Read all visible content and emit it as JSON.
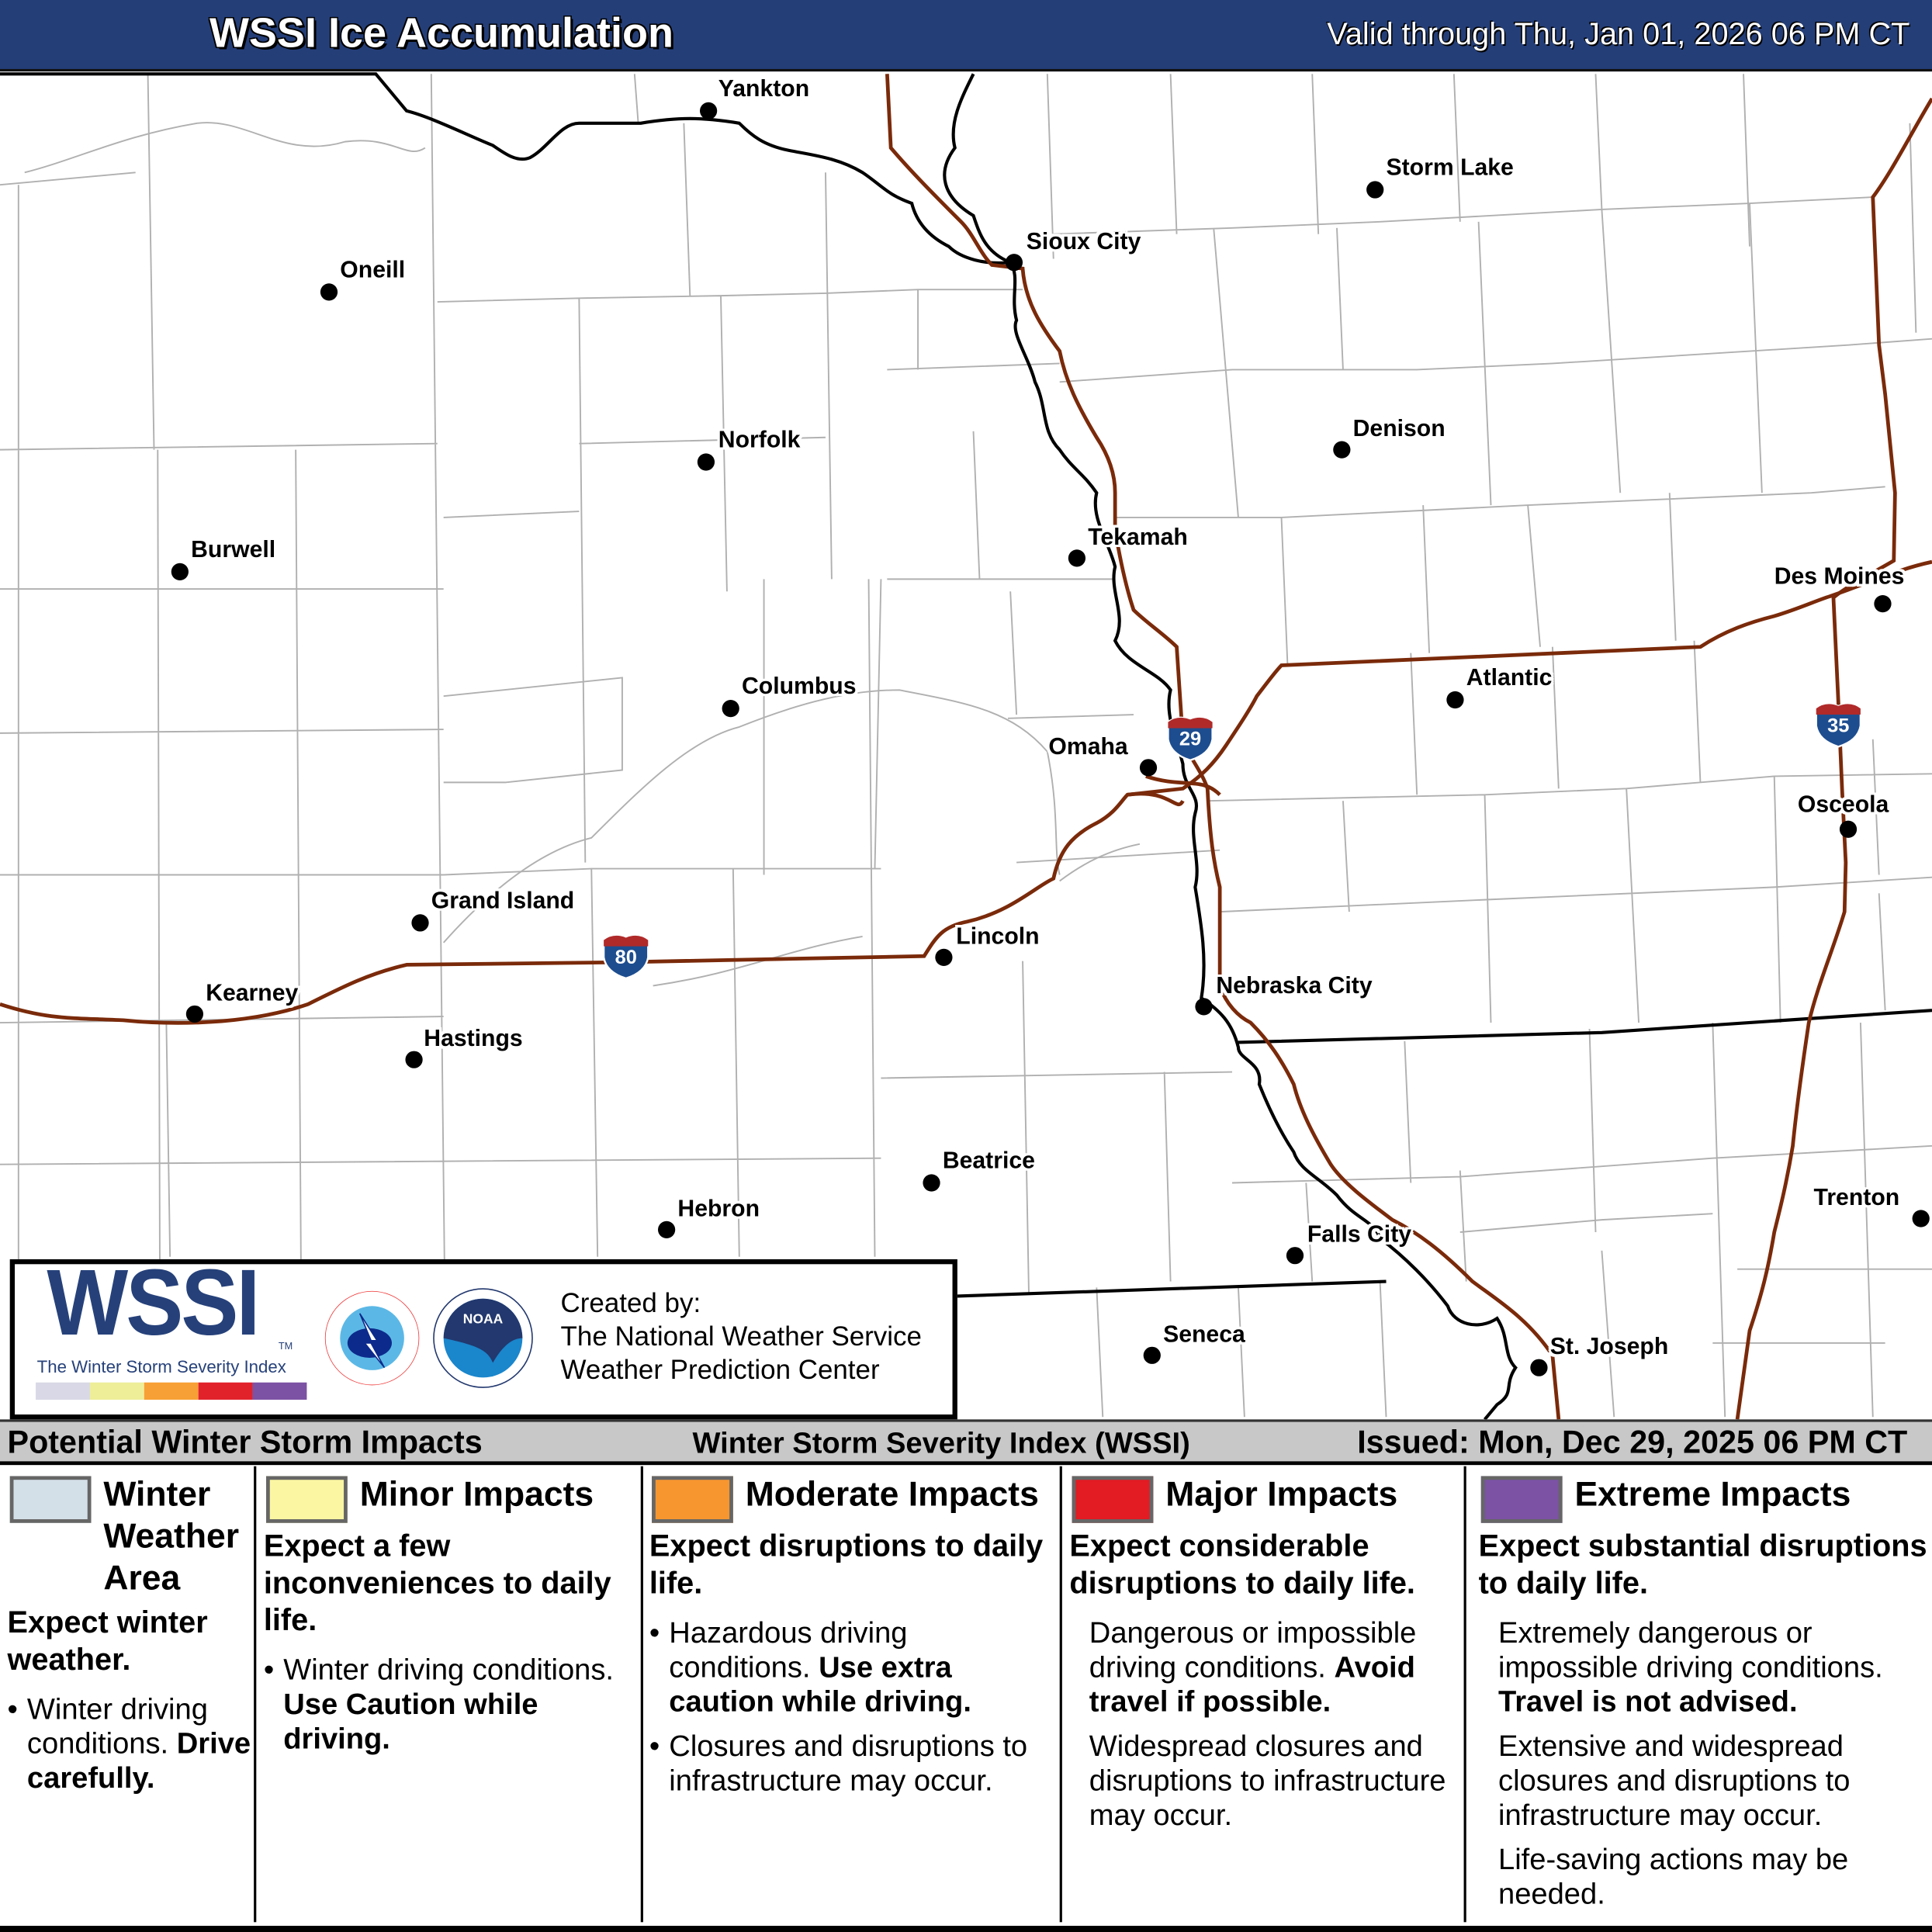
{
  "header": {
    "title": "WSSI Ice Accumulation",
    "valid": "Valid through Thu, Jan 01, 2026 06 PM CT"
  },
  "map": {
    "colors": {
      "interstate": "#7a2a0a",
      "state_border": "#000000",
      "county_border": "#b0b0b0",
      "shield_blue": "#1d4d8f",
      "shield_red": "#b02a2a"
    },
    "cities": [
      "Yankton",
      "Storm Lake",
      "Sioux City",
      "Oneill",
      "Norfolk",
      "Denison",
      "Tekamah",
      "Burwell",
      "Des Moines",
      "Columbus",
      "Atlantic",
      "Omaha",
      "Osceola",
      "Grand Island",
      "Lincoln",
      "Kearney",
      "Nebraska City",
      "Hastings",
      "Beatrice",
      "Trenton",
      "Hebron",
      "Falls City",
      "Seneca",
      "St. Joseph"
    ],
    "interstates": [
      "29",
      "35",
      "80"
    ]
  },
  "logo": {
    "wssi": "WSSI",
    "tm": "TM",
    "subtitle": "The Winter Storm Severity Index",
    "nws_text": "NATIONAL WEATHER SERVICE",
    "noaa_text": "NOAA",
    "created_by": "Created by:",
    "org1": "The National Weather Service",
    "org2": "Weather Prediction Center",
    "bar_colors": [
      "#d8d8e6",
      "#eeee99",
      "#f7a035",
      "#e2222b",
      "#7b52a4"
    ]
  },
  "legend": {
    "heading": "Potential Winter Storm Impacts",
    "index": "Winter Storm Severity Index (WSSI)",
    "issued": "Issued: Mon, Dec 29, 2025 06 PM CT",
    "categories": [
      {
        "title": "Winter Weather Area",
        "color": "#d4e0e8",
        "summary": "Expect winter weather.",
        "b1": "Winter driving conditions.",
        "b1_bold": "Drive carefully."
      },
      {
        "title": "Minor Impacts",
        "color": "#faf6a2",
        "summary": "Expect a few inconveniences to daily life.",
        "b1": "Winter driving conditions.",
        "b1_bold": "Use Caution while driving."
      },
      {
        "title": "Moderate Impacts",
        "color": "#f7962f",
        "summary": "Expect disruptions to daily life.",
        "b1": "Hazardous driving conditions.",
        "b1_bold": "Use extra caution while driving.",
        "b2": "Closures and disruptions to infrastructure may occur."
      },
      {
        "title": "Major Impacts",
        "color": "#e31b23",
        "summary": "Expect considerable disruptions to daily life.",
        "b1": "Dangerous or impossible driving conditions.",
        "b1_bold": "Avoid travel if possible.",
        "b2": "Widespread closures and disruptions to infrastructure may occur."
      },
      {
        "title": "Extreme Impacts",
        "color": "#7b52a4",
        "summary": "Expect substantial disruptions to daily life.",
        "b1": "Extremely dangerous or impossible driving conditions.",
        "b1_bold": "Travel is not advised.",
        "b2": "Extensive and widespread closures and disruptions to infrastructure may occur.",
        "b3": "Life-saving actions may be needed."
      }
    ]
  }
}
